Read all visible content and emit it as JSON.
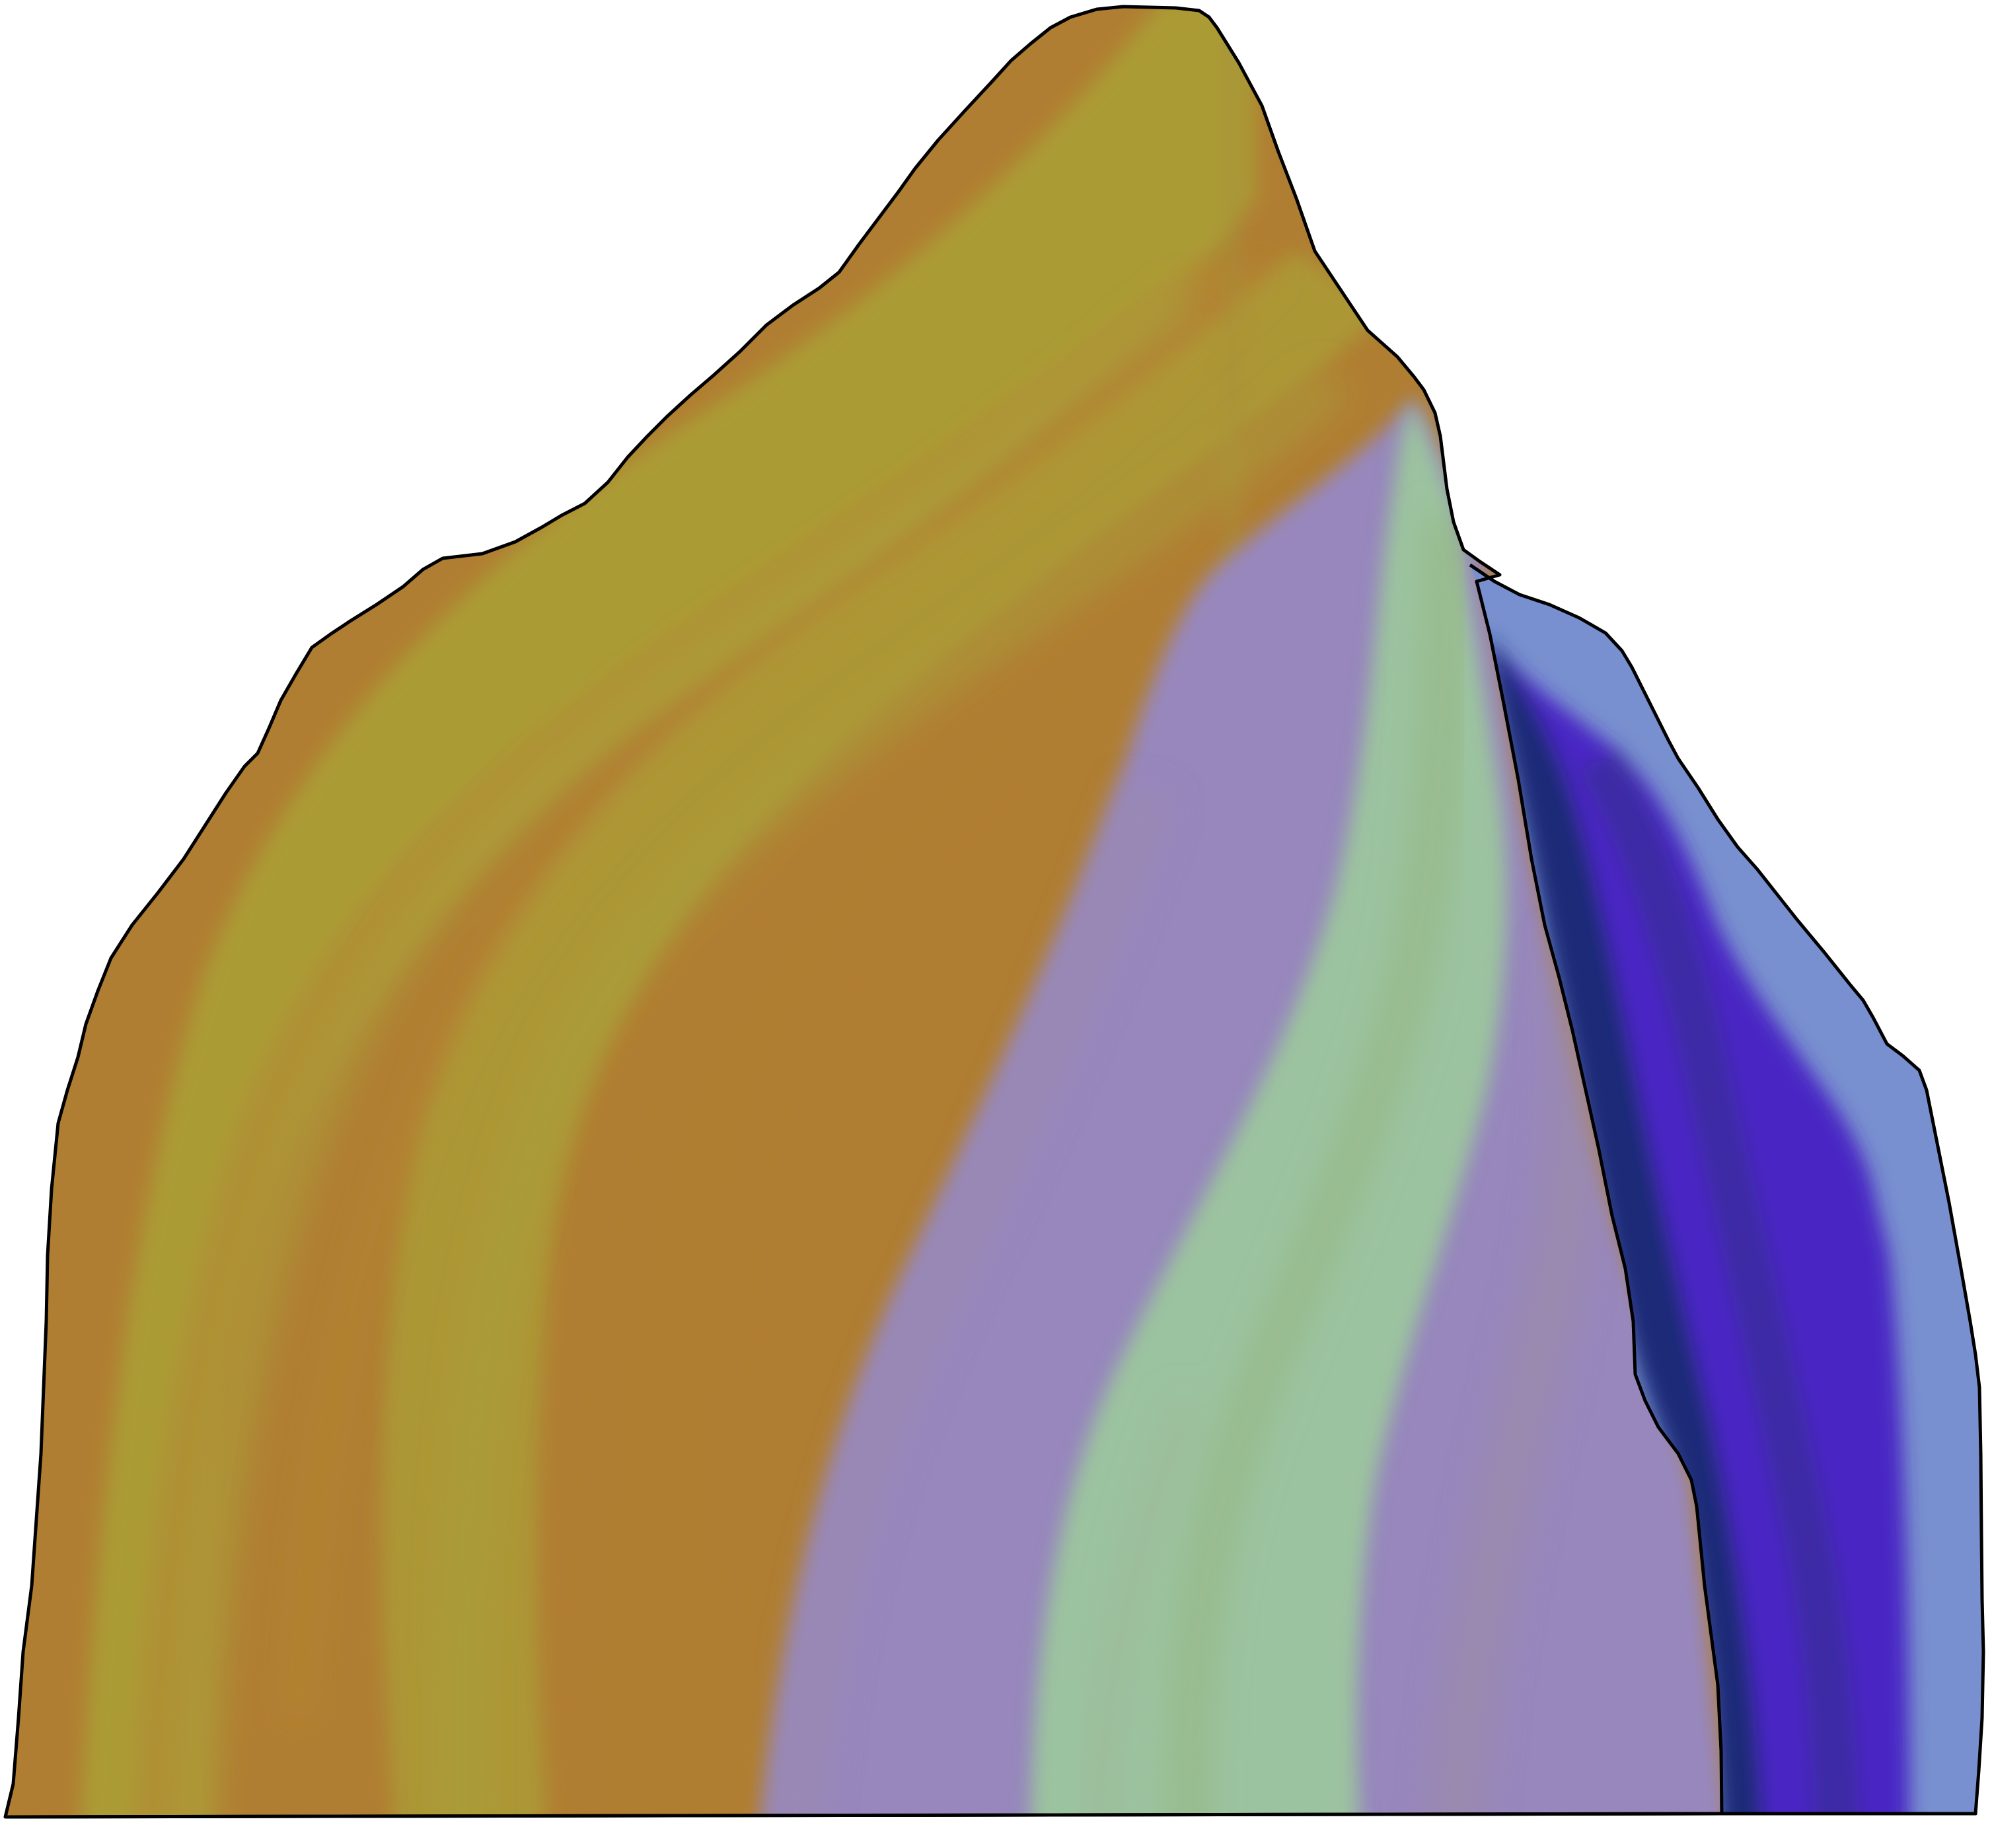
{
  "diagram": {
    "kind": "geological cross-section",
    "labels": [],
    "units": [
      {
        "name": "unit-ochre",
        "color": "#b07e32"
      },
      {
        "name": "unit-olive",
        "color": "#ab9b36"
      },
      {
        "name": "unit-purple",
        "color": "#9787bd"
      },
      {
        "name": "unit-green",
        "color": "#9bc39f"
      },
      {
        "name": "unit-navy",
        "color": "#1f2a78"
      },
      {
        "name": "unit-violet",
        "color": "#4a28c4"
      },
      {
        "name": "unit-blue",
        "color": "#7890cf"
      }
    ],
    "outline_color": "#000000"
  }
}
